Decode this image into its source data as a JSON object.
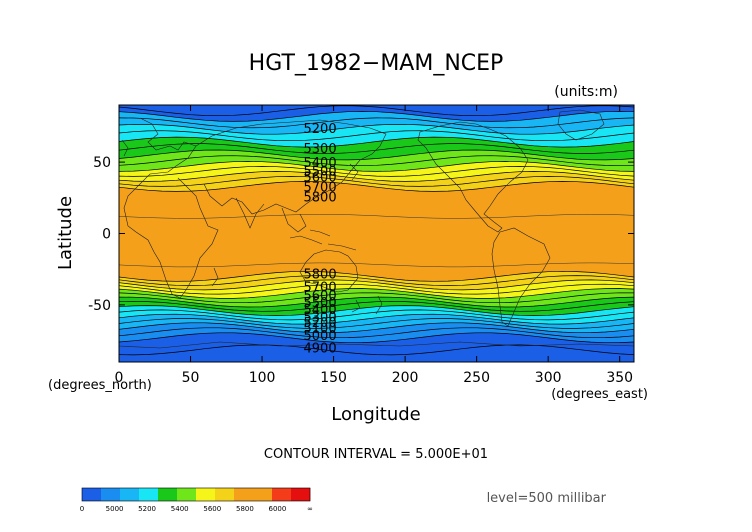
{
  "chart_data": {
    "type": "heatmap",
    "title": "HGT_1982−MAM_NCEP",
    "units_label": "(units:m)",
    "xlabel": "Longitude",
    "ylabel": "Latitude",
    "x_unit_label": "(degrees_east)",
    "y_unit_label": "(degrees_north)",
    "xlim": [
      0,
      360
    ],
    "ylim": [
      -90,
      90
    ],
    "x_ticks": [
      0,
      50,
      100,
      150,
      200,
      250,
      300,
      350
    ],
    "y_ticks": [
      -50,
      0,
      50
    ],
    "contour_interval_text": "CONTOUR INTERVAL = 5.000E+01",
    "level_text": "level=500 millibar",
    "contour_labels": [
      {
        "text": "5200",
        "lon": 129,
        "lat": 74
      },
      {
        "text": "5300",
        "lon": 129,
        "lat": 60
      },
      {
        "text": "5400",
        "lon": 129,
        "lat": 50
      },
      {
        "text": "5500",
        "lon": 129,
        "lat": 44
      },
      {
        "text": "5600",
        "lon": 129,
        "lat": 40
      },
      {
        "text": "5700",
        "lon": 129,
        "lat": 33
      },
      {
        "text": "5800",
        "lon": 129,
        "lat": 26
      },
      {
        "text": "5800",
        "lon": 129,
        "lat": -28
      },
      {
        "text": "5700",
        "lon": 129,
        "lat": -37
      },
      {
        "text": "5600",
        "lon": 129,
        "lat": -43
      },
      {
        "text": "5500",
        "lon": 129,
        "lat": -48
      },
      {
        "text": "5400",
        "lon": 129,
        "lat": -53
      },
      {
        "text": "5300",
        "lon": 129,
        "lat": -58
      },
      {
        "text": "5200",
        "lon": 129,
        "lat": -62
      },
      {
        "text": "5100",
        "lon": 129,
        "lat": -66
      },
      {
        "text": "5000",
        "lon": 129,
        "lat": -71
      },
      {
        "text": "4900",
        "lon": 129,
        "lat": -80
      }
    ],
    "colorbar": {
      "labels": [
        "0",
        "5000",
        "5200",
        "5400",
        "5600",
        "5800",
        "6000",
        "∞"
      ],
      "colors": [
        "#1a5fe6",
        "#1a8ef0",
        "#19b6f5",
        "#19e6f5",
        "#1ac81a",
        "#6ee61a",
        "#f5f51a",
        "#f5d21a",
        "#f5a01a",
        "#f5a01a",
        "#f53c1a",
        "#e60f0f"
      ]
    },
    "bands": [
      {
        "lat_from": 90,
        "lat_to": 82,
        "color": "#1a5fe6",
        "range": "5000-5100"
      },
      {
        "lat_from": 82,
        "lat_to": 73,
        "color": "#19b6f5",
        "range": "5200-5300"
      },
      {
        "lat_from": 73,
        "lat_to": 64,
        "color": "#19e6f5",
        "range": "5300-5400"
      },
      {
        "lat_from": 64,
        "lat_to": 55,
        "color": "#1ac81a",
        "range": "5400-5500"
      },
      {
        "lat_from": 55,
        "lat_to": 47,
        "color": "#6ee61a",
        "range": "5500-5600"
      },
      {
        "lat_from": 47,
        "lat_to": 40,
        "color": "#f5f51a",
        "range": "5600-5700"
      },
      {
        "lat_from": 40,
        "lat_to": 33,
        "color": "#f5d21a",
        "range": "5700-5800"
      },
      {
        "lat_from": 33,
        "lat_to": -30,
        "color": "#f5a01a",
        "range": "5800-6000"
      },
      {
        "lat_from": -30,
        "lat_to": -36,
        "color": "#f5d21a",
        "range": "5700-5800"
      },
      {
        "lat_from": -36,
        "lat_to": -42,
        "color": "#f5f51a",
        "range": "5600-5700"
      },
      {
        "lat_from": -42,
        "lat_to": -48,
        "color": "#6ee61a",
        "range": "5500-5600"
      },
      {
        "lat_from": -48,
        "lat_to": -54,
        "color": "#1ac81a",
        "range": "5400-5500"
      },
      {
        "lat_from": -54,
        "lat_to": -60,
        "color": "#19e6f5",
        "range": "5300-5400"
      },
      {
        "lat_from": -60,
        "lat_to": -66,
        "color": "#19b6f5",
        "range": "5200-5300"
      },
      {
        "lat_from": -66,
        "lat_to": -73,
        "color": "#1a8ef0",
        "range": "5100-5200"
      },
      {
        "lat_from": -73,
        "lat_to": -90,
        "color": "#1a5fe6",
        "range": "4900-5100"
      }
    ]
  }
}
